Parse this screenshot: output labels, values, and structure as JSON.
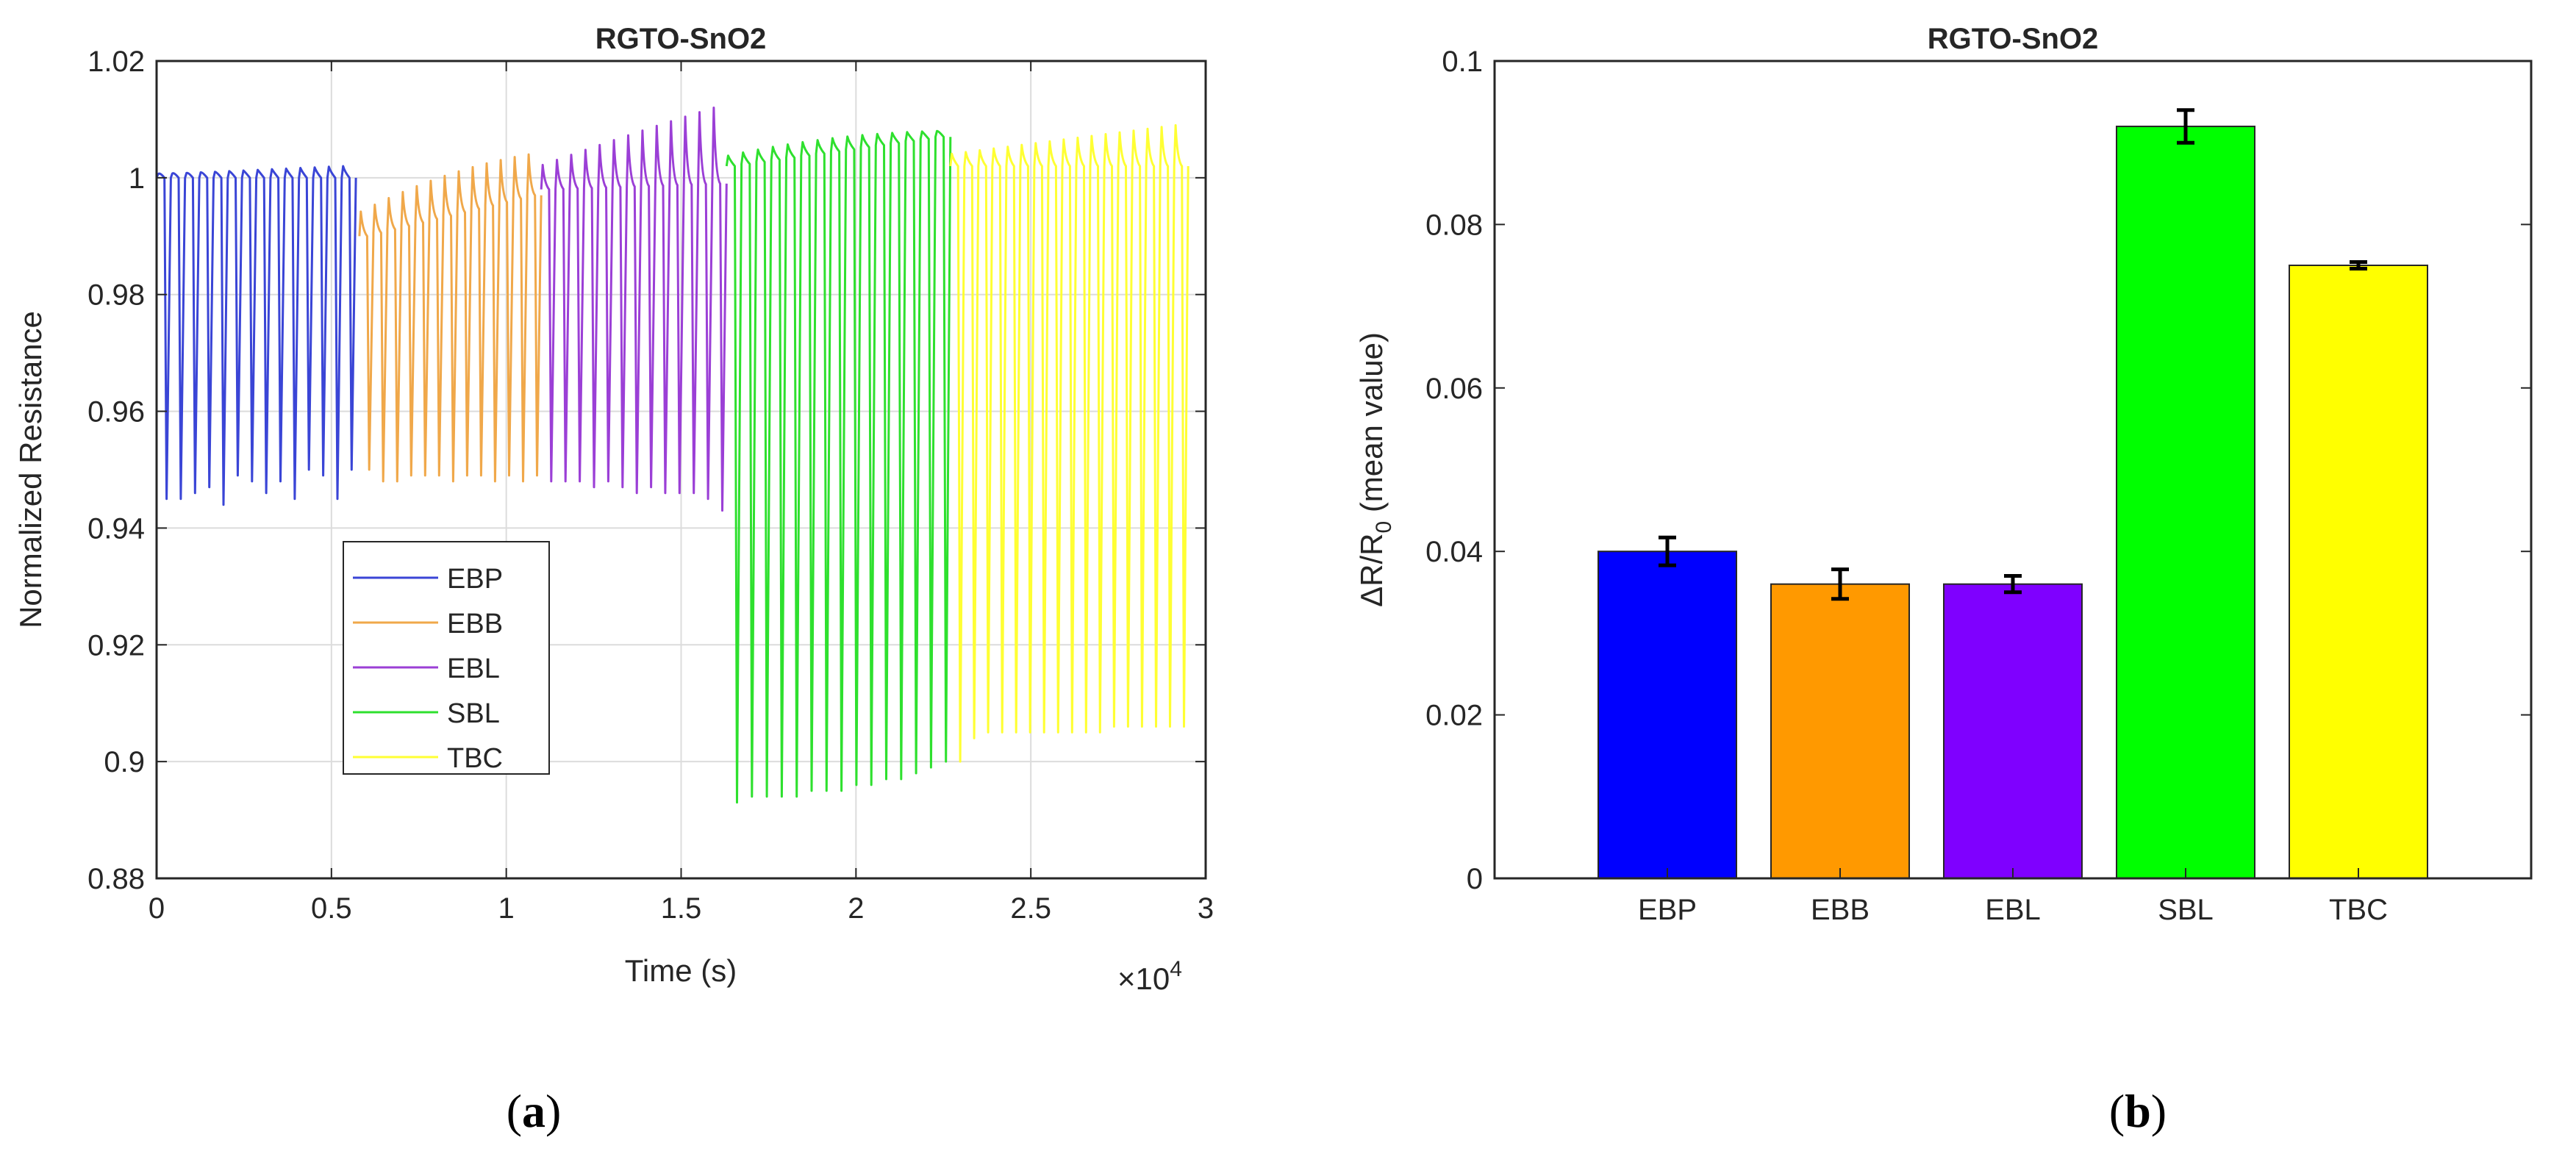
{
  "chart_data": [
    {
      "type": "line",
      "title": "RGTO-SnO2",
      "xlabel": "Time (s)",
      "ylabel": "Normalized Resistance",
      "xlim": [
        0,
        30000
      ],
      "ylim": [
        0.88,
        1.02
      ],
      "x_exponent_label": "×10",
      "x_exponent_power": "4",
      "x_ticks": [
        0,
        5000,
        10000,
        15000,
        20000,
        25000,
        30000
      ],
      "x_tick_labels": [
        "0",
        "0.5",
        "1",
        "1.5",
        "2",
        "2.5",
        "3"
      ],
      "y_ticks": [
        0.88,
        0.9,
        0.92,
        0.94,
        0.96,
        0.98,
        1.0,
        1.02
      ],
      "y_tick_labels": [
        "0.88",
        "0.9",
        "0.92",
        "0.94",
        "0.96",
        "0.98",
        "1",
        "1.02"
      ],
      "grid": true,
      "legend_position": "lower-left",
      "series": [
        {
          "name": "EBP",
          "color": "#3a45d6",
          "x_start": 0,
          "x_end": 5700,
          "pulses": 14,
          "baseline_start": 1.0,
          "baseline_end": 1.0,
          "peak": 1.002,
          "min_values": [
            0.945,
            0.945,
            0.946,
            0.947,
            0.944,
            0.949,
            0.948,
            0.946,
            0.948,
            0.945,
            0.95,
            0.949,
            0.945,
            0.95
          ]
        },
        {
          "name": "EBB",
          "color": "#f0a84a",
          "x_start": 5800,
          "x_end": 11000,
          "pulses": 13,
          "baseline_start": 0.99,
          "baseline_end": 0.997,
          "peak": 1.004,
          "min_values": [
            0.95,
            0.948,
            0.948,
            0.949,
            0.949,
            0.949,
            0.948,
            0.949,
            0.949,
            0.948,
            0.949,
            0.948,
            0.949
          ]
        },
        {
          "name": "EBL",
          "color": "#9b3fd6",
          "x_start": 11000,
          "x_end": 16300,
          "pulses": 13,
          "baseline_start": 0.998,
          "baseline_end": 0.999,
          "peak": 1.012,
          "min_values": [
            0.948,
            0.948,
            0.948,
            0.947,
            0.948,
            0.947,
            0.946,
            0.947,
            0.946,
            0.946,
            0.946,
            0.945,
            0.943
          ]
        },
        {
          "name": "SBL",
          "color": "#2ee02e",
          "x_start": 16300,
          "x_end": 22700,
          "pulses": 15,
          "baseline_start": 1.002,
          "baseline_end": 1.007,
          "peak": 1.008,
          "min_values": [
            0.893,
            0.894,
            0.894,
            0.894,
            0.894,
            0.895,
            0.895,
            0.895,
            0.896,
            0.896,
            0.897,
            0.897,
            0.898,
            0.899,
            0.9
          ]
        },
        {
          "name": "TBC",
          "color": "#ffff33",
          "x_start": 22700,
          "x_end": 29500,
          "pulses": 17,
          "baseline_start": 1.002,
          "baseline_end": 1.002,
          "peak": 1.009,
          "min_values": [
            0.9,
            0.904,
            0.905,
            0.905,
            0.905,
            0.905,
            0.905,
            0.905,
            0.905,
            0.905,
            0.905,
            0.906,
            0.906,
            0.906,
            0.906,
            0.906,
            0.906
          ]
        }
      ]
    },
    {
      "type": "bar",
      "title": "RGTO-SnO2",
      "ylabel_main": "ΔR/R",
      "ylabel_sub": "0",
      "ylabel_tail": " (mean value)",
      "categories": [
        "EBP",
        "EBB",
        "EBL",
        "SBL",
        "TBC"
      ],
      "values": [
        0.04,
        0.036,
        0.036,
        0.092,
        0.075
      ],
      "errors": [
        0.0017,
        0.0018,
        0.001,
        0.002,
        0.0004
      ],
      "colors": [
        "#0000ff",
        "#ff9900",
        "#7f00ff",
        "#00ff00",
        "#ffff00"
      ],
      "ylim": [
        0,
        0.1
      ],
      "y_ticks": [
        0,
        0.02,
        0.04,
        0.06,
        0.08,
        0.1
      ],
      "y_tick_labels": [
        "0",
        "0.02",
        "0.04",
        "0.06",
        "0.08",
        "0.1"
      ]
    }
  ],
  "captions": {
    "a": "a",
    "b": "b"
  }
}
